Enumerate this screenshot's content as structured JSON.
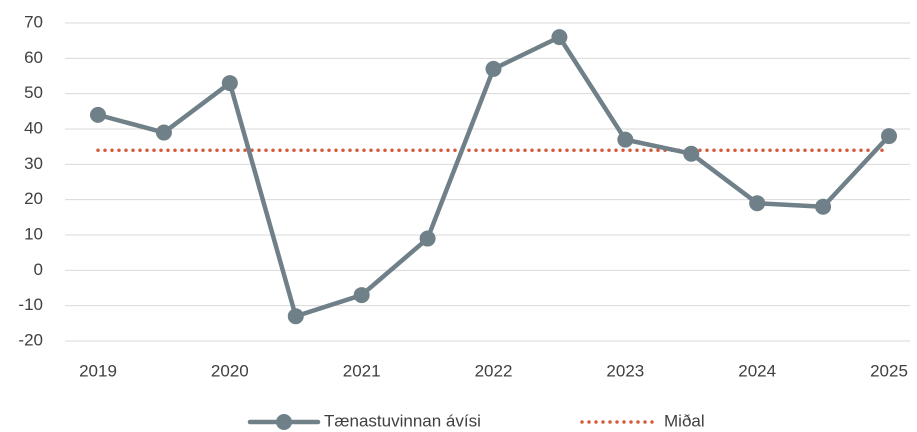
{
  "chart_data": {
    "type": "line",
    "categories": [
      "2019",
      null,
      "2020",
      null,
      "2021",
      null,
      "2022",
      null,
      "2023",
      null,
      "2024",
      null,
      "2025"
    ],
    "series": [
      {
        "name": "Tænastuvinnan ávísi",
        "color": "#708089",
        "style": "solid-markers",
        "values": [
          44,
          39,
          53,
          -13,
          -7,
          9,
          57,
          66,
          37,
          33,
          19,
          18,
          38
        ]
      },
      {
        "name": "Miðal",
        "color": "#d65a3c",
        "style": "dotted",
        "values": [
          34,
          34,
          34,
          34,
          34,
          34,
          34,
          34,
          34,
          34,
          34,
          34,
          34
        ]
      }
    ],
    "ylim": [
      -20,
      70
    ],
    "yticks": [
      -20,
      -10,
      0,
      10,
      20,
      30,
      40,
      50,
      60,
      70
    ],
    "grid": true,
    "legend": "bottom"
  }
}
